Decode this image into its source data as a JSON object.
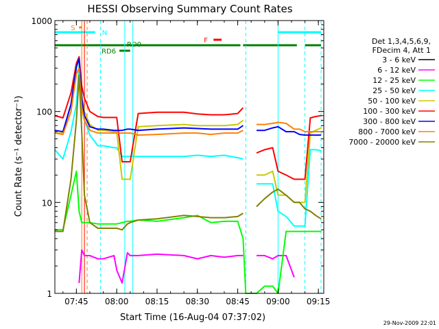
{
  "chart_data": {
    "type": "line",
    "title": "HESSI Observing Summary Count Rates",
    "xlabel": "Start Time (16-Aug-04 07:37:02)",
    "ylabel": "Count Rate (s⁻¹ detector⁻¹)",
    "yscale": "log",
    "ylim": [
      1,
      1000
    ],
    "xlim": [
      "07:37",
      "09:17"
    ],
    "x_tick_labels": [
      "07:45",
      "08:00",
      "08:15",
      "08:30",
      "08:45",
      "09:00",
      "09:15"
    ],
    "y_tick_labels": [
      "1",
      "10",
      "100",
      "1000"
    ],
    "footer_date": "29-Nov-2009 22:01",
    "legend_header": [
      "Det 1,3,4,5,6,9,",
      "FDecim 4, Att 1"
    ],
    "legend_position": "right",
    "x": [
      "07:37",
      "07:40",
      "07:43",
      "07:45",
      "07:46",
      "07:47",
      "07:48",
      "07:50",
      "07:53",
      "07:55",
      "07:59",
      "08:00",
      "08:02",
      "08:04",
      "08:05",
      "08:08",
      "08:15",
      "08:25",
      "08:30",
      "08:35",
      "08:40",
      "08:45",
      "08:47",
      "08:48",
      "08:52",
      "08:55",
      "08:58",
      "09:00",
      "09:03",
      "09:06",
      "09:08",
      "09:10",
      "09:12",
      "09:14",
      "09:16"
    ],
    "series": [
      {
        "name": "3 - 6 keV",
        "color": "#000000",
        "values": [
          null,
          null,
          null,
          null,
          null,
          null,
          null,
          null,
          null,
          null,
          null,
          null,
          null,
          null,
          null,
          null,
          null,
          null,
          null,
          null,
          null,
          null,
          null,
          null,
          null,
          null,
          null,
          null,
          null,
          null,
          null,
          null,
          null,
          null,
          null
        ]
      },
      {
        "name": "6 - 12 keV",
        "color": "#ff00ff",
        "values": [
          null,
          null,
          null,
          null,
          1.3,
          3.0,
          2.6,
          2.6,
          2.4,
          2.4,
          2.6,
          1.8,
          1.3,
          2.8,
          2.6,
          2.6,
          2.7,
          2.6,
          2.4,
          2.6,
          2.5,
          2.6,
          2.6,
          null,
          2.6,
          2.6,
          2.4,
          2.6,
          2.6,
          1.5,
          null,
          null,
          null,
          null,
          null
        ]
      },
      {
        "name": "12 - 25 keV",
        "color": "#00ff00",
        "values": [
          5.0,
          5.0,
          12,
          22,
          8,
          6,
          6,
          6,
          5.8,
          5.8,
          5.8,
          5.8,
          6.0,
          6.2,
          6.2,
          6.4,
          6.2,
          6.8,
          7.2,
          6.0,
          6.2,
          6.2,
          4.0,
          1.0,
          1.0,
          1.2,
          1.2,
          1.0,
          4.8,
          4.8,
          4.8,
          4.8,
          4.8,
          4.8,
          4.8
        ]
      },
      {
        "name": "25 - 50 keV",
        "color": "#00ffff",
        "values": [
          38,
          30,
          60,
          120,
          330,
          120,
          80,
          55,
          42,
          42,
          40,
          40,
          32,
          32,
          32,
          32,
          32,
          32,
          33,
          32,
          33,
          31,
          30,
          null,
          16,
          16,
          16,
          8,
          7,
          5.5,
          5.5,
          5.5,
          38,
          38,
          37
        ]
      },
      {
        "name": "50 - 100 keV",
        "color": "#c8c800",
        "values": [
          58,
          58,
          120,
          310,
          380,
          150,
          100,
          72,
          62,
          62,
          60,
          60,
          18,
          18,
          18,
          68,
          70,
          72,
          70,
          70,
          70,
          72,
          80,
          null,
          20,
          20,
          22,
          12,
          12,
          10,
          10,
          10,
          58,
          62,
          66
        ]
      },
      {
        "name": "100 - 300 keV",
        "color": "#ff0000",
        "values": [
          90,
          85,
          160,
          340,
          400,
          190,
          140,
          100,
          88,
          86,
          86,
          86,
          28,
          28,
          28,
          95,
          98,
          98,
          94,
          92,
          92,
          95,
          110,
          null,
          35,
          38,
          40,
          22,
          20,
          18,
          18,
          18,
          85,
          88,
          90
        ]
      },
      {
        "name": "300 - 800 keV",
        "color": "#0000ff",
        "values": [
          62,
          60,
          120,
          310,
          380,
          140,
          90,
          68,
          64,
          64,
          62,
          62,
          62,
          64,
          64,
          62,
          64,
          66,
          65,
          64,
          64,
          64,
          70,
          null,
          62,
          62,
          66,
          68,
          60,
          60,
          56,
          55,
          55,
          55,
          55
        ]
      },
      {
        "name": "800 - 7000 keV",
        "color": "#ff8000",
        "values": [
          58,
          56,
          100,
          260,
          300,
          110,
          80,
          62,
          58,
          58,
          58,
          58,
          58,
          58,
          58,
          55,
          56,
          58,
          58,
          56,
          58,
          58,
          62,
          null,
          72,
          72,
          74,
          76,
          74,
          64,
          64,
          60,
          60,
          60,
          60
        ]
      },
      {
        "name": "7000 - 20000 keV",
        "color": "#808000",
        "values": [
          4.8,
          4.8,
          18,
          80,
          250,
          60,
          12,
          6.0,
          5.2,
          5.2,
          5.2,
          5.2,
          5.0,
          5.8,
          6.0,
          6.4,
          6.6,
          7.2,
          7.0,
          6.8,
          6.8,
          7.0,
          7.6,
          null,
          9.0,
          11,
          13,
          14,
          12,
          10,
          10,
          8.5,
          8.0,
          7.2,
          6.6
        ]
      }
    ],
    "state_bars": [
      {
        "label": "S",
        "color": "#ff8000",
        "start": "07:46",
        "end": "07:47"
      },
      {
        "label": "N",
        "color": "#00ffff",
        "start": "07:37",
        "end": "07:52"
      },
      {
        "label": "N",
        "color": "#00ffff",
        "start": "09:00",
        "end": "09:16"
      },
      {
        "label": "F",
        "color": "#ff0000",
        "start": "08:36",
        "end": "08:39"
      },
      {
        "label": "RD0",
        "color": "#008000",
        "start": "07:37",
        "end": "08:46"
      },
      {
        "label": "RD0",
        "color": "#008000",
        "start": "08:47",
        "end": "09:07"
      },
      {
        "label": "RD0",
        "color": "#008000",
        "start": "09:10",
        "end": "09:16"
      },
      {
        "label": "RD6",
        "color": "#008000",
        "start": "08:01",
        "end": "08:05"
      }
    ],
    "vertical_lines": [
      {
        "time": "07:47",
        "color": "#ff8000",
        "style": "solid"
      },
      {
        "time": "07:49",
        "color": "#ff8000",
        "style": "dashed"
      },
      {
        "time": "07:48",
        "color": "#ff0000",
        "style": "solid"
      },
      {
        "time": "07:37",
        "color": "#00ffff",
        "style": "solid"
      },
      {
        "time": "07:54",
        "color": "#00ffff",
        "style": "dashed"
      },
      {
        "time": "08:03",
        "color": "#00ffff",
        "style": "solid"
      },
      {
        "time": "08:06",
        "color": "#00ffff",
        "style": "solid"
      },
      {
        "time": "08:48",
        "color": "#00ffff",
        "style": "dashed"
      },
      {
        "time": "09:00",
        "color": "#00ffff",
        "style": "solid"
      },
      {
        "time": "09:10",
        "color": "#00ffff",
        "style": "dashed"
      },
      {
        "time": "09:16",
        "color": "#00ffff",
        "style": "dashed"
      }
    ]
  }
}
